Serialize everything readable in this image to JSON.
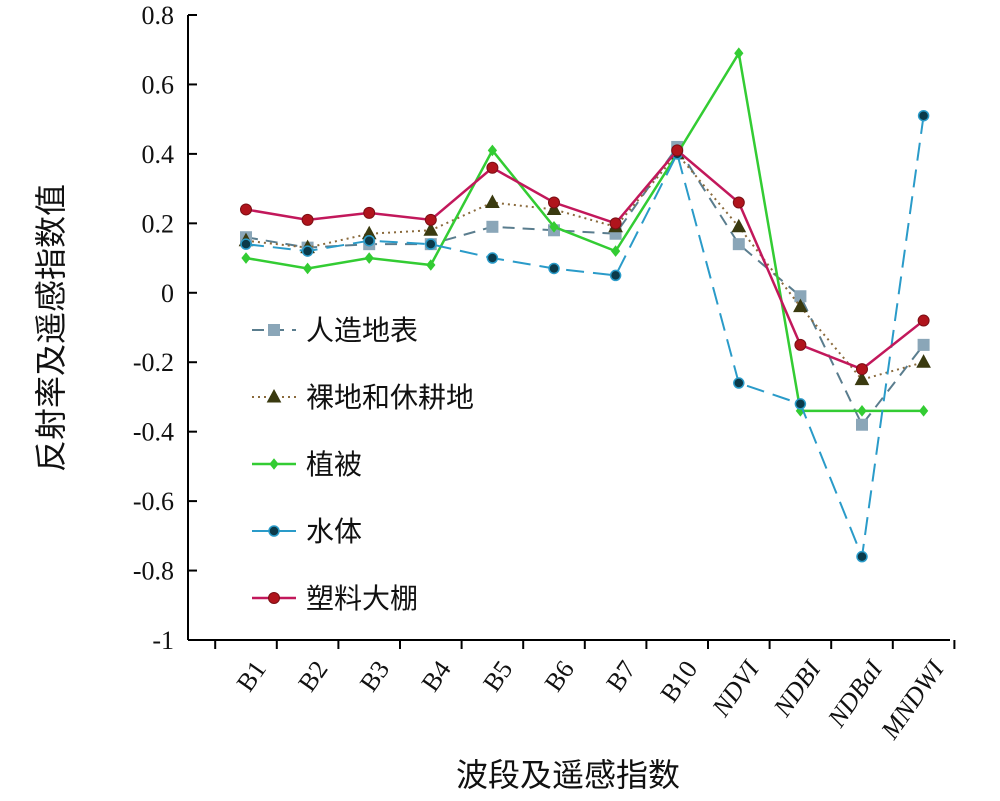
{
  "chart_data": {
    "type": "line",
    "xlabel": "波段及遥感指数",
    "ylabel": "反射率及遥感指数值",
    "ylim": [
      -1,
      0.8
    ],
    "yticks": [
      0.8,
      0.6,
      0.4,
      0.2,
      0,
      -0.2,
      -0.4,
      -0.6,
      -0.8,
      -1
    ],
    "ytick_labels": [
      "0.8",
      "0.6",
      "0.4",
      "0.2",
      "0",
      "-0.2",
      "-0.4",
      "-0.6",
      "-0.8",
      "-1"
    ],
    "categories": [
      "B1",
      "B2",
      "B3",
      "B4",
      "B5",
      "B6",
      "B7",
      "B10",
      "NDVI",
      "NDBI",
      "NDBaI",
      "MNDWI"
    ],
    "grid": false,
    "legend_position": "left-center",
    "series": [
      {
        "name": "人造地表",
        "color": "#5a7d8e",
        "marker": "square",
        "dash": "dashed",
        "values": [
          0.16,
          0.13,
          0.14,
          0.14,
          0.19,
          0.18,
          0.17,
          0.42,
          0.14,
          -0.01,
          -0.38,
          -0.15
        ]
      },
      {
        "name": "裸地和休耕地",
        "color": "#8a6a3c",
        "marker": "triangle",
        "dash": "dotted",
        "values": [
          0.15,
          0.13,
          0.17,
          0.18,
          0.26,
          0.24,
          0.19,
          0.4,
          0.19,
          -0.04,
          -0.25,
          -0.2
        ]
      },
      {
        "name": "植被",
        "color": "#33cc33",
        "marker": "diamond",
        "dash": "solid",
        "values": [
          0.1,
          0.07,
          0.1,
          0.08,
          0.41,
          0.19,
          0.12,
          0.4,
          0.69,
          -0.34,
          -0.34,
          -0.34
        ]
      },
      {
        "name": "水体",
        "color": "#2a9bc9",
        "marker": "circle",
        "dash": "longdash",
        "values": [
          0.14,
          0.12,
          0.15,
          0.14,
          0.1,
          0.07,
          0.05,
          0.4,
          -0.26,
          -0.32,
          -0.76,
          0.51
        ]
      },
      {
        "name": "塑料大棚",
        "color": "#c2185b",
        "marker": "circle-red",
        "dash": "solid",
        "values": [
          0.24,
          0.21,
          0.23,
          0.21,
          0.36,
          0.26,
          0.2,
          0.41,
          0.26,
          -0.15,
          -0.22,
          -0.08
        ]
      }
    ]
  }
}
